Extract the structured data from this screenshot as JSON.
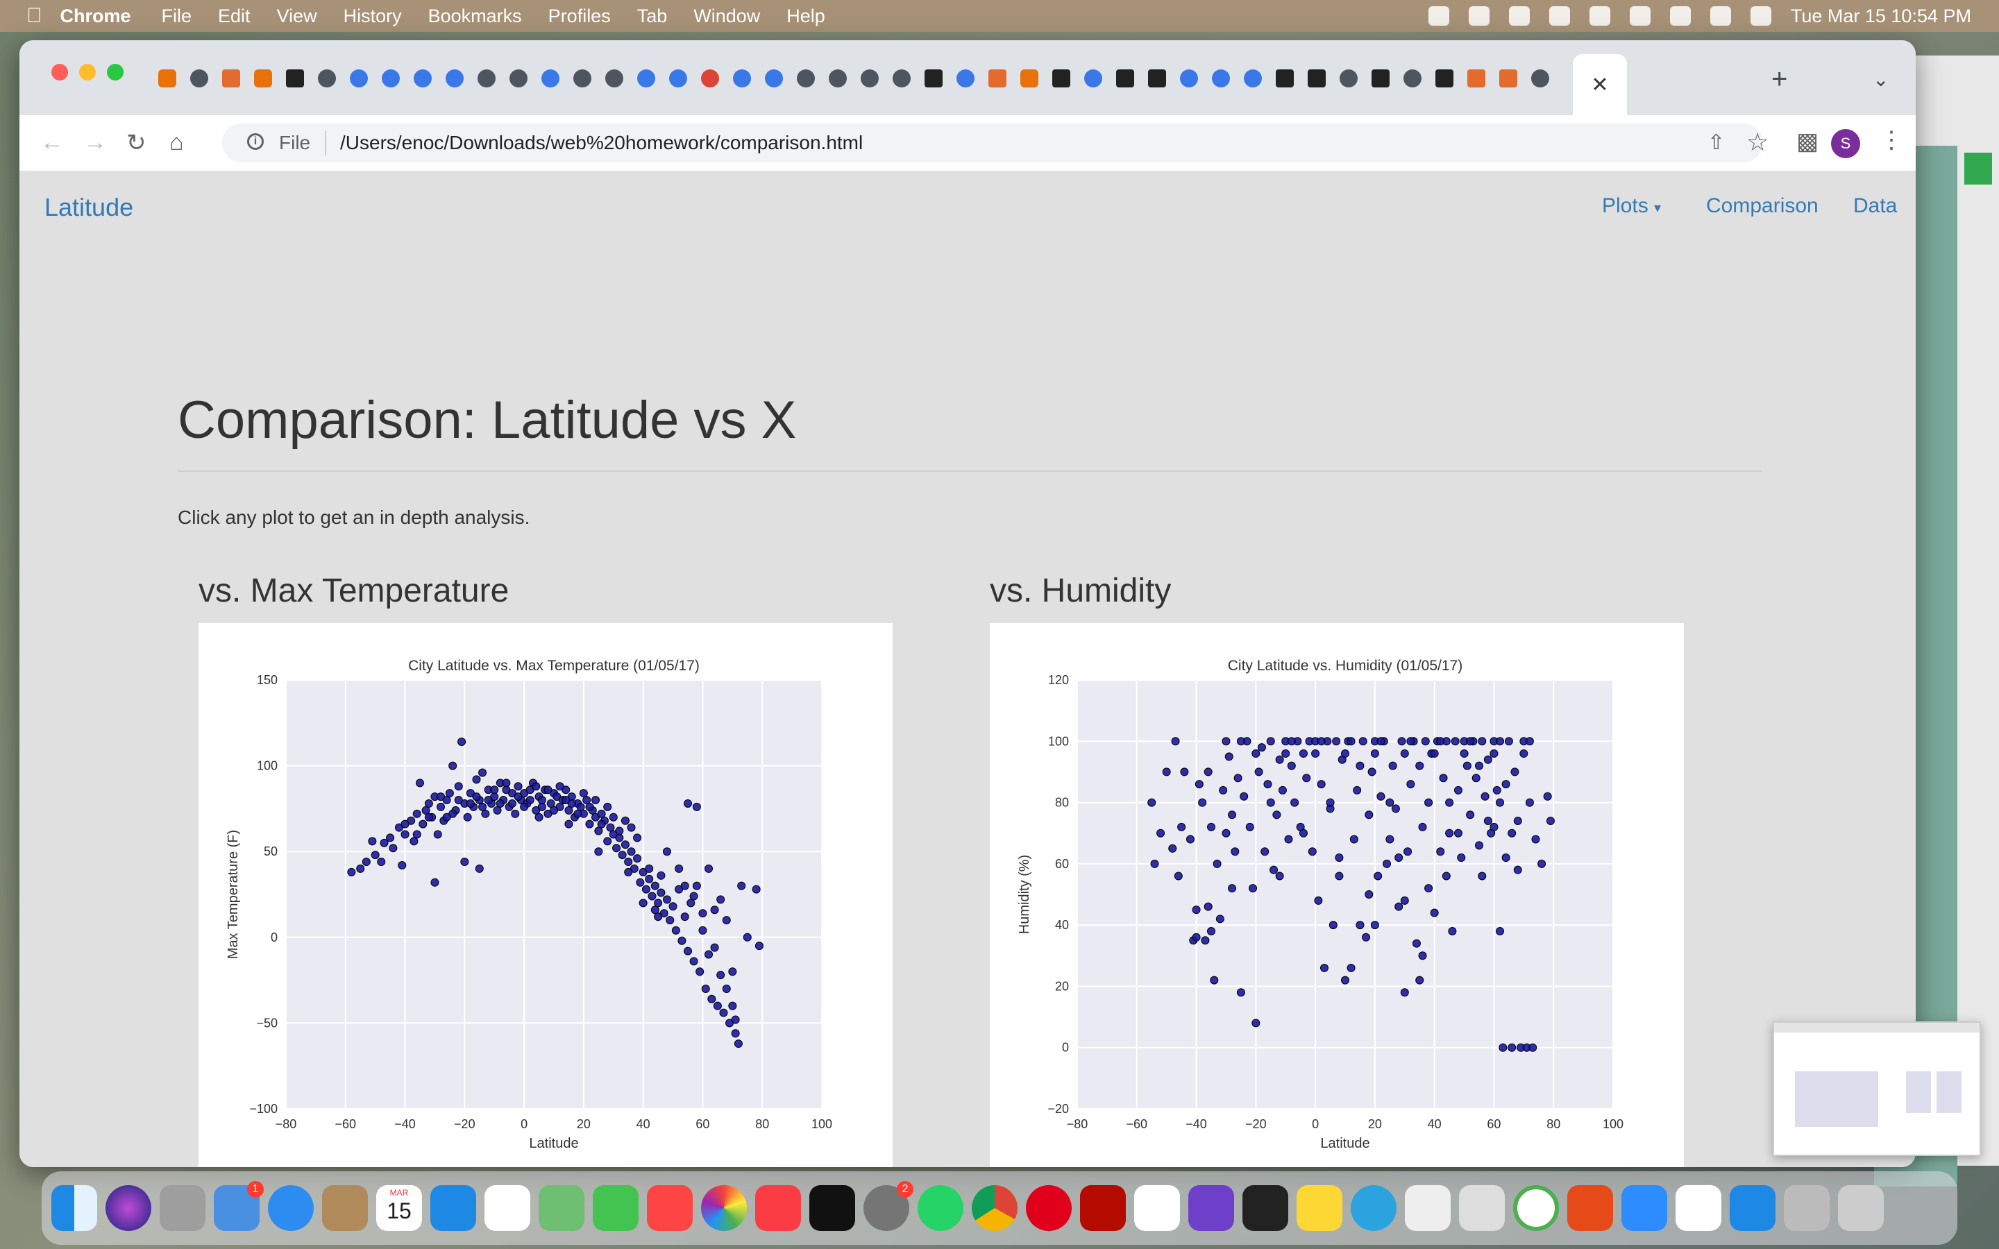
{
  "menubar": {
    "app": "Chrome",
    "items": [
      "File",
      "Edit",
      "View",
      "History",
      "Bookmarks",
      "Profiles",
      "Tab",
      "Window",
      "Help"
    ],
    "clock": "Tue Mar 15  10:54 PM"
  },
  "browser": {
    "url_scheme": "File",
    "url": "/Users/enoc/Downloads/web%20homework/comparison.html",
    "profile_initial": "S",
    "active_tab_icon": "close-icon"
  },
  "page": {
    "brand": "Latitude",
    "nav": {
      "plots": "Plots",
      "comparison": "Comparison",
      "data": "Data"
    },
    "title": "Comparison: Latitude vs X",
    "intro": "Click any plot to get an in depth analysis.",
    "plot_headings": {
      "temp": "vs. Max Temperature",
      "humidity": "vs. Humidity"
    }
  },
  "dock": {
    "calendar_day": "15",
    "calendar_month": "MAR",
    "mail_badge": "1",
    "settings_badge": "2"
  },
  "chart_data": [
    {
      "type": "scatter",
      "title": "City Latitude vs. Max Temperature (01/05/17)",
      "xlabel": "Latitude",
      "ylabel": "Max Temperature (F)",
      "xlim": [
        -80,
        100
      ],
      "ylim": [
        -100,
        150
      ],
      "xticks": [
        -80,
        -60,
        -40,
        -20,
        0,
        20,
        40,
        60,
        80,
        100
      ],
      "yticks": [
        -100,
        -50,
        0,
        50,
        100,
        150
      ],
      "grid": true,
      "color": "#1a1aa0",
      "points": [
        [
          -55,
          40
        ],
        [
          -53,
          44
        ],
        [
          -50,
          48
        ],
        [
          -47,
          55
        ],
        [
          -45,
          58
        ],
        [
          -44,
          52
        ],
        [
          -42,
          64
        ],
        [
          -40,
          60
        ],
        [
          -38,
          68
        ],
        [
          -36,
          72
        ],
        [
          -35,
          90
        ],
        [
          -34,
          66
        ],
        [
          -33,
          74
        ],
        [
          -32,
          78
        ],
        [
          -31,
          70
        ],
        [
          -30,
          82
        ],
        [
          -29,
          60
        ],
        [
          -28,
          76
        ],
        [
          -27,
          68
        ],
        [
          -26,
          80
        ],
        [
          -25,
          84
        ],
        [
          -24,
          100
        ],
        [
          -23,
          74
        ],
        [
          -22,
          88
        ],
        [
          -21,
          114
        ],
        [
          -20,
          78
        ],
        [
          -19,
          70
        ],
        [
          -18,
          84
        ],
        [
          -17,
          76
        ],
        [
          -16,
          92
        ],
        [
          -15,
          80
        ],
        [
          -14,
          96
        ],
        [
          -13,
          72
        ],
        [
          -12,
          86
        ],
        [
          -11,
          78
        ],
        [
          -10,
          82
        ],
        [
          -9,
          74
        ],
        [
          -8,
          90
        ],
        [
          -7,
          80
        ],
        [
          -6,
          86
        ],
        [
          -5,
          76
        ],
        [
          -4,
          84
        ],
        [
          -3,
          72
        ],
        [
          -2,
          88
        ],
        [
          -1,
          80
        ],
        [
          0,
          84
        ],
        [
          1,
          78
        ],
        [
          2,
          86
        ],
        [
          3,
          90
        ],
        [
          4,
          74
        ],
        [
          5,
          82
        ],
        [
          6,
          80
        ],
        [
          7,
          86
        ],
        [
          8,
          72
        ],
        [
          9,
          78
        ],
        [
          10,
          84
        ],
        [
          11,
          82
        ],
        [
          12,
          76
        ],
        [
          13,
          80
        ],
        [
          14,
          86
        ],
        [
          15,
          74
        ],
        [
          16,
          82
        ],
        [
          17,
          70
        ],
        [
          18,
          78
        ],
        [
          19,
          76
        ],
        [
          20,
          72
        ],
        [
          21,
          80
        ],
        [
          22,
          66
        ],
        [
          23,
          74
        ],
        [
          24,
          70
        ],
        [
          25,
          62
        ],
        [
          26,
          72
        ],
        [
          27,
          68
        ],
        [
          28,
          56
        ],
        [
          29,
          64
        ],
        [
          30,
          60
        ],
        [
          31,
          52
        ],
        [
          32,
          58
        ],
        [
          33,
          48
        ],
        [
          34,
          54
        ],
        [
          35,
          44
        ],
        [
          36,
          50
        ],
        [
          37,
          40
        ],
        [
          38,
          46
        ],
        [
          39,
          32
        ],
        [
          40,
          38
        ],
        [
          41,
          28
        ],
        [
          42,
          34
        ],
        [
          43,
          24
        ],
        [
          44,
          30
        ],
        [
          45,
          20
        ],
        [
          46,
          26
        ],
        [
          47,
          14
        ],
        [
          48,
          22
        ],
        [
          49,
          10
        ],
        [
          50,
          18
        ],
        [
          51,
          4
        ],
        [
          52,
          28
        ],
        [
          53,
          -2
        ],
        [
          54,
          12
        ],
        [
          55,
          -8
        ],
        [
          56,
          20
        ],
        [
          57,
          -14
        ],
        [
          58,
          30
        ],
        [
          59,
          -20
        ],
        [
          60,
          4
        ],
        [
          61,
          -30
        ],
        [
          62,
          40
        ],
        [
          63,
          -36
        ],
        [
          64,
          -6
        ],
        [
          65,
          -40
        ],
        [
          66,
          22
        ],
        [
          67,
          -44
        ],
        [
          68,
          10
        ],
        [
          69,
          -50
        ],
        [
          70,
          -20
        ],
        [
          71,
          -56
        ],
        [
          72,
          -62
        ],
        [
          73,
          30
        ],
        [
          75,
          0
        ],
        [
          78,
          28
        ],
        [
          79,
          -5
        ],
        [
          -58,
          38
        ],
        [
          -41,
          42
        ],
        [
          -37,
          56
        ],
        [
          -30,
          32
        ],
        [
          -20,
          44
        ],
        [
          -15,
          40
        ],
        [
          5,
          70
        ],
        [
          15,
          66
        ],
        [
          25,
          50
        ],
        [
          35,
          38
        ],
        [
          45,
          12
        ],
        [
          55,
          78
        ],
        [
          58,
          76
        ],
        [
          48,
          50
        ],
        [
          52,
          40
        ],
        [
          60,
          14
        ],
        [
          62,
          -10
        ],
        [
          66,
          -22
        ],
        [
          68,
          -30
        ],
        [
          70,
          -40
        ],
        [
          71,
          -48
        ],
        [
          64,
          16
        ],
        [
          54,
          30
        ],
        [
          57,
          24
        ],
        [
          46,
          36
        ],
        [
          44,
          16
        ],
        [
          42,
          40
        ],
        [
          40,
          20
        ],
        [
          38,
          58
        ],
        [
          36,
          64
        ],
        [
          34,
          68
        ],
        [
          32,
          62
        ],
        [
          30,
          70
        ],
        [
          28,
          76
        ],
        [
          26,
          66
        ],
        [
          24,
          80
        ],
        [
          22,
          76
        ],
        [
          20,
          84
        ],
        [
          18,
          72
        ],
        [
          16,
          78
        ],
        [
          14,
          80
        ],
        [
          12,
          88
        ],
        [
          10,
          74
        ],
        [
          8,
          86
        ],
        [
          6,
          76
        ],
        [
          4,
          88
        ],
        [
          2,
          80
        ],
        [
          0,
          76
        ],
        [
          -2,
          82
        ],
        [
          -4,
          78
        ],
        [
          -6,
          90
        ],
        [
          -8,
          78
        ],
        [
          -10,
          86
        ],
        [
          -12,
          80
        ],
        [
          -14,
          76
        ],
        [
          -16,
          82
        ],
        [
          -18,
          78
        ],
        [
          -22,
          80
        ],
        [
          -24,
          72
        ],
        [
          -26,
          70
        ],
        [
          -28,
          82
        ],
        [
          -32,
          70
        ],
        [
          -36,
          60
        ],
        [
          -40,
          66
        ],
        [
          -48,
          44
        ],
        [
          -51,
          56
        ]
      ]
    },
    {
      "type": "scatter",
      "title": "City Latitude vs. Humidity (01/05/17)",
      "xlabel": "Latitude",
      "ylabel": "Humidity (%)",
      "xlim": [
        -80,
        100
      ],
      "ylim": [
        -20,
        120
      ],
      "xticks": [
        -80,
        -60,
        -40,
        -20,
        0,
        20,
        40,
        60,
        80,
        100
      ],
      "yticks": [
        -20,
        0,
        20,
        40,
        60,
        80,
        100,
        120
      ],
      "grid": true,
      "color": "#1a1aa0",
      "points": [
        [
          -55,
          80
        ],
        [
          -54,
          60
        ],
        [
          -52,
          70
        ],
        [
          -48,
          65
        ],
        [
          -47,
          100
        ],
        [
          -46,
          56
        ],
        [
          -45,
          72
        ],
        [
          -44,
          90
        ],
        [
          -42,
          68
        ],
        [
          -41,
          35
        ],
        [
          -40,
          45
        ],
        [
          -39,
          86
        ],
        [
          -38,
          80
        ],
        [
          -37,
          35
        ],
        [
          -36,
          90
        ],
        [
          -35,
          38
        ],
        [
          -34,
          22
        ],
        [
          -33,
          60
        ],
        [
          -32,
          42
        ],
        [
          -31,
          84
        ],
        [
          -30,
          70
        ],
        [
          -29,
          95
        ],
        [
          -28,
          76
        ],
        [
          -27,
          64
        ],
        [
          -26,
          88
        ],
        [
          -25,
          18
        ],
        [
          -24,
          82
        ],
        [
          -23,
          100
        ],
        [
          -22,
          72
        ],
        [
          -21,
          52
        ],
        [
          -20,
          8
        ],
        [
          -19,
          90
        ],
        [
          -18,
          98
        ],
        [
          -17,
          64
        ],
        [
          -16,
          86
        ],
        [
          -15,
          100
        ],
        [
          -14,
          58
        ],
        [
          -13,
          76
        ],
        [
          -12,
          94
        ],
        [
          -11,
          84
        ],
        [
          -10,
          100
        ],
        [
          -9,
          68
        ],
        [
          -8,
          92
        ],
        [
          -7,
          80
        ],
        [
          -6,
          100
        ],
        [
          -5,
          72
        ],
        [
          -4,
          96
        ],
        [
          -3,
          88
        ],
        [
          -2,
          100
        ],
        [
          -1,
          64
        ],
        [
          0,
          100
        ],
        [
          1,
          48
        ],
        [
          2,
          86
        ],
        [
          3,
          26
        ],
        [
          4,
          100
        ],
        [
          5,
          78
        ],
        [
          6,
          40
        ],
        [
          7,
          100
        ],
        [
          8,
          62
        ],
        [
          9,
          94
        ],
        [
          10,
          22
        ],
        [
          11,
          100
        ],
        [
          12,
          26
        ],
        [
          13,
          68
        ],
        [
          14,
          84
        ],
        [
          15,
          40
        ],
        [
          16,
          100
        ],
        [
          17,
          36
        ],
        [
          18,
          76
        ],
        [
          19,
          90
        ],
        [
          20,
          100
        ],
        [
          21,
          56
        ],
        [
          22,
          82
        ],
        [
          23,
          100
        ],
        [
          24,
          60
        ],
        [
          25,
          68
        ],
        [
          26,
          92
        ],
        [
          27,
          78
        ],
        [
          28,
          46
        ],
        [
          29,
          100
        ],
        [
          30,
          18
        ],
        [
          31,
          64
        ],
        [
          32,
          86
        ],
        [
          33,
          100
        ],
        [
          34,
          34
        ],
        [
          35,
          22
        ],
        [
          36,
          72
        ],
        [
          37,
          100
        ],
        [
          38,
          80
        ],
        [
          39,
          96
        ],
        [
          40,
          44
        ],
        [
          41,
          100
        ],
        [
          42,
          64
        ],
        [
          43,
          88
        ],
        [
          44,
          100
        ],
        [
          45,
          70
        ],
        [
          46,
          38
        ],
        [
          47,
          100
        ],
        [
          48,
          84
        ],
        [
          49,
          62
        ],
        [
          50,
          100
        ],
        [
          51,
          92
        ],
        [
          52,
          76
        ],
        [
          53,
          100
        ],
        [
          54,
          88
        ],
        [
          55,
          66
        ],
        [
          56,
          100
        ],
        [
          57,
          82
        ],
        [
          58,
          94
        ],
        [
          59,
          70
        ],
        [
          60,
          100
        ],
        [
          61,
          84
        ],
        [
          62,
          38
        ],
        [
          63,
          0
        ],
        [
          64,
          62
        ],
        [
          65,
          100
        ],
        [
          66,
          0
        ],
        [
          67,
          90
        ],
        [
          68,
          74
        ],
        [
          69,
          0
        ],
        [
          70,
          100
        ],
        [
          71,
          0
        ],
        [
          72,
          80
        ],
        [
          73,
          0
        ],
        [
          74,
          68
        ],
        [
          76,
          60
        ],
        [
          78,
          82
        ],
        [
          79,
          74
        ],
        [
          -50,
          90
        ],
        [
          -30,
          100
        ],
        [
          -20,
          96
        ],
        [
          -10,
          96
        ],
        [
          0,
          96
        ],
        [
          10,
          96
        ],
        [
          20,
          96
        ],
        [
          30,
          96
        ],
        [
          40,
          96
        ],
        [
          50,
          96
        ],
        [
          60,
          96
        ],
        [
          70,
          96
        ],
        [
          -8,
          100
        ],
        [
          2,
          100
        ],
        [
          12,
          100
        ],
        [
          22,
          100
        ],
        [
          32,
          100
        ],
        [
          42,
          100
        ],
        [
          52,
          100
        ],
        [
          62,
          100
        ],
        [
          72,
          100
        ],
        [
          -25,
          100
        ],
        [
          15,
          92
        ],
        [
          35,
          92
        ],
        [
          55,
          92
        ],
        [
          45,
          80
        ],
        [
          25,
          80
        ],
        [
          5,
          80
        ],
        [
          -15,
          80
        ],
        [
          -35,
          72
        ],
        [
          60,
          72
        ],
        [
          66,
          70
        ],
        [
          68,
          58
        ],
        [
          56,
          56
        ],
        [
          58,
          74
        ],
        [
          62,
          80
        ],
        [
          64,
          86
        ],
        [
          48,
          70
        ],
        [
          44,
          56
        ],
        [
          38,
          52
        ],
        [
          28,
          62
        ],
        [
          18,
          50
        ],
        [
          8,
          56
        ],
        [
          -4,
          70
        ],
        [
          -12,
          56
        ],
        [
          -28,
          52
        ],
        [
          36,
          30
        ],
        [
          30,
          48
        ],
        [
          20,
          40
        ],
        [
          -40,
          36
        ],
        [
          -36,
          46
        ]
      ]
    }
  ]
}
